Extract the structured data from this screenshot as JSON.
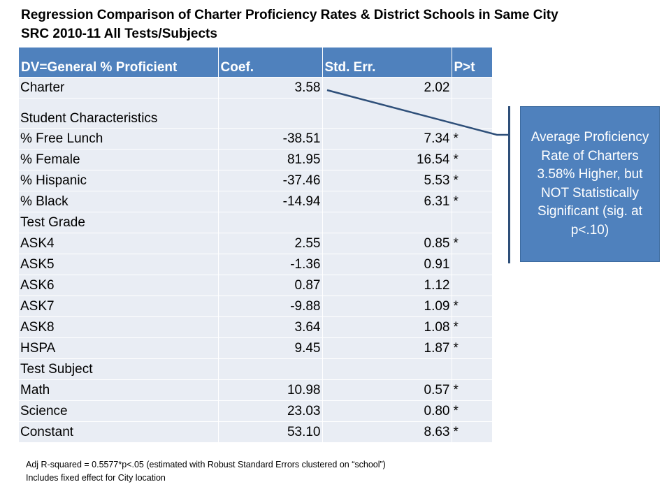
{
  "title": {
    "line1": "Regression Comparison of Charter Proficiency Rates & District Schools in Same City",
    "line2": "SRC 2010-11  All Tests/Subjects"
  },
  "table": {
    "headers": [
      "DV=General % Proficient",
      "Coef.",
      "Std. Err.",
      "P>t"
    ],
    "rows": [
      {
        "label": "Charter",
        "coef": "3.58",
        "se": "2.02",
        "sig": ""
      },
      {
        "label": "Student Characteristics",
        "coef": "",
        "se": "",
        "sig": ""
      },
      {
        "label": "% Free Lunch",
        "coef": "-38.51",
        "se": "7.34",
        "sig": "*"
      },
      {
        "label": "% Female",
        "coef": "81.95",
        "se": "16.54",
        "sig": "*"
      },
      {
        "label": "% Hispanic",
        "coef": "-37.46",
        "se": "5.53",
        "sig": "*"
      },
      {
        "label": "% Black",
        "coef": "-14.94",
        "se": "6.31",
        "sig": "*"
      },
      {
        "label": "Test Grade",
        "coef": "",
        "se": "",
        "sig": ""
      },
      {
        "label": "ASK4",
        "coef": "2.55",
        "se": "0.85",
        "sig": "*"
      },
      {
        "label": "ASK5",
        "coef": "-1.36",
        "se": "0.91",
        "sig": ""
      },
      {
        "label": "ASK6",
        "coef": "0.87",
        "se": "1.12",
        "sig": ""
      },
      {
        "label": "ASK7",
        "coef": "-9.88",
        "se": "1.09",
        "sig": "*"
      },
      {
        "label": "ASK8",
        "coef": "3.64",
        "se": "1.08",
        "sig": "*"
      },
      {
        "label": "HSPA",
        "coef": "9.45",
        "se": "1.87",
        "sig": "*"
      },
      {
        "label": "Test Subject",
        "coef": "",
        "se": "",
        "sig": ""
      },
      {
        "label": "Math",
        "coef": "10.98",
        "se": "0.57",
        "sig": "*"
      },
      {
        "label": "Science",
        "coef": "23.03",
        "se": "0.80",
        "sig": "*"
      },
      {
        "label": "Constant",
        "coef": "53.10",
        "se": "8.63",
        "sig": "*"
      }
    ]
  },
  "callout": {
    "text": "Average Proficiency Rate of Charters 3.58% Higher, but NOT Statistically Significant (sig. at p<.10)"
  },
  "notes": {
    "line1": "Adj R-squared =  0.5577*p<.05 (estimated with Robust Standard Errors clustered on “school”)",
    "line2": "Includes fixed effect for City location"
  },
  "colors": {
    "header_bg": "#4f81bd",
    "row_bg": "#e9edf4",
    "callout_bg": "#4f81bd",
    "leader_line": "#2e4f79"
  }
}
